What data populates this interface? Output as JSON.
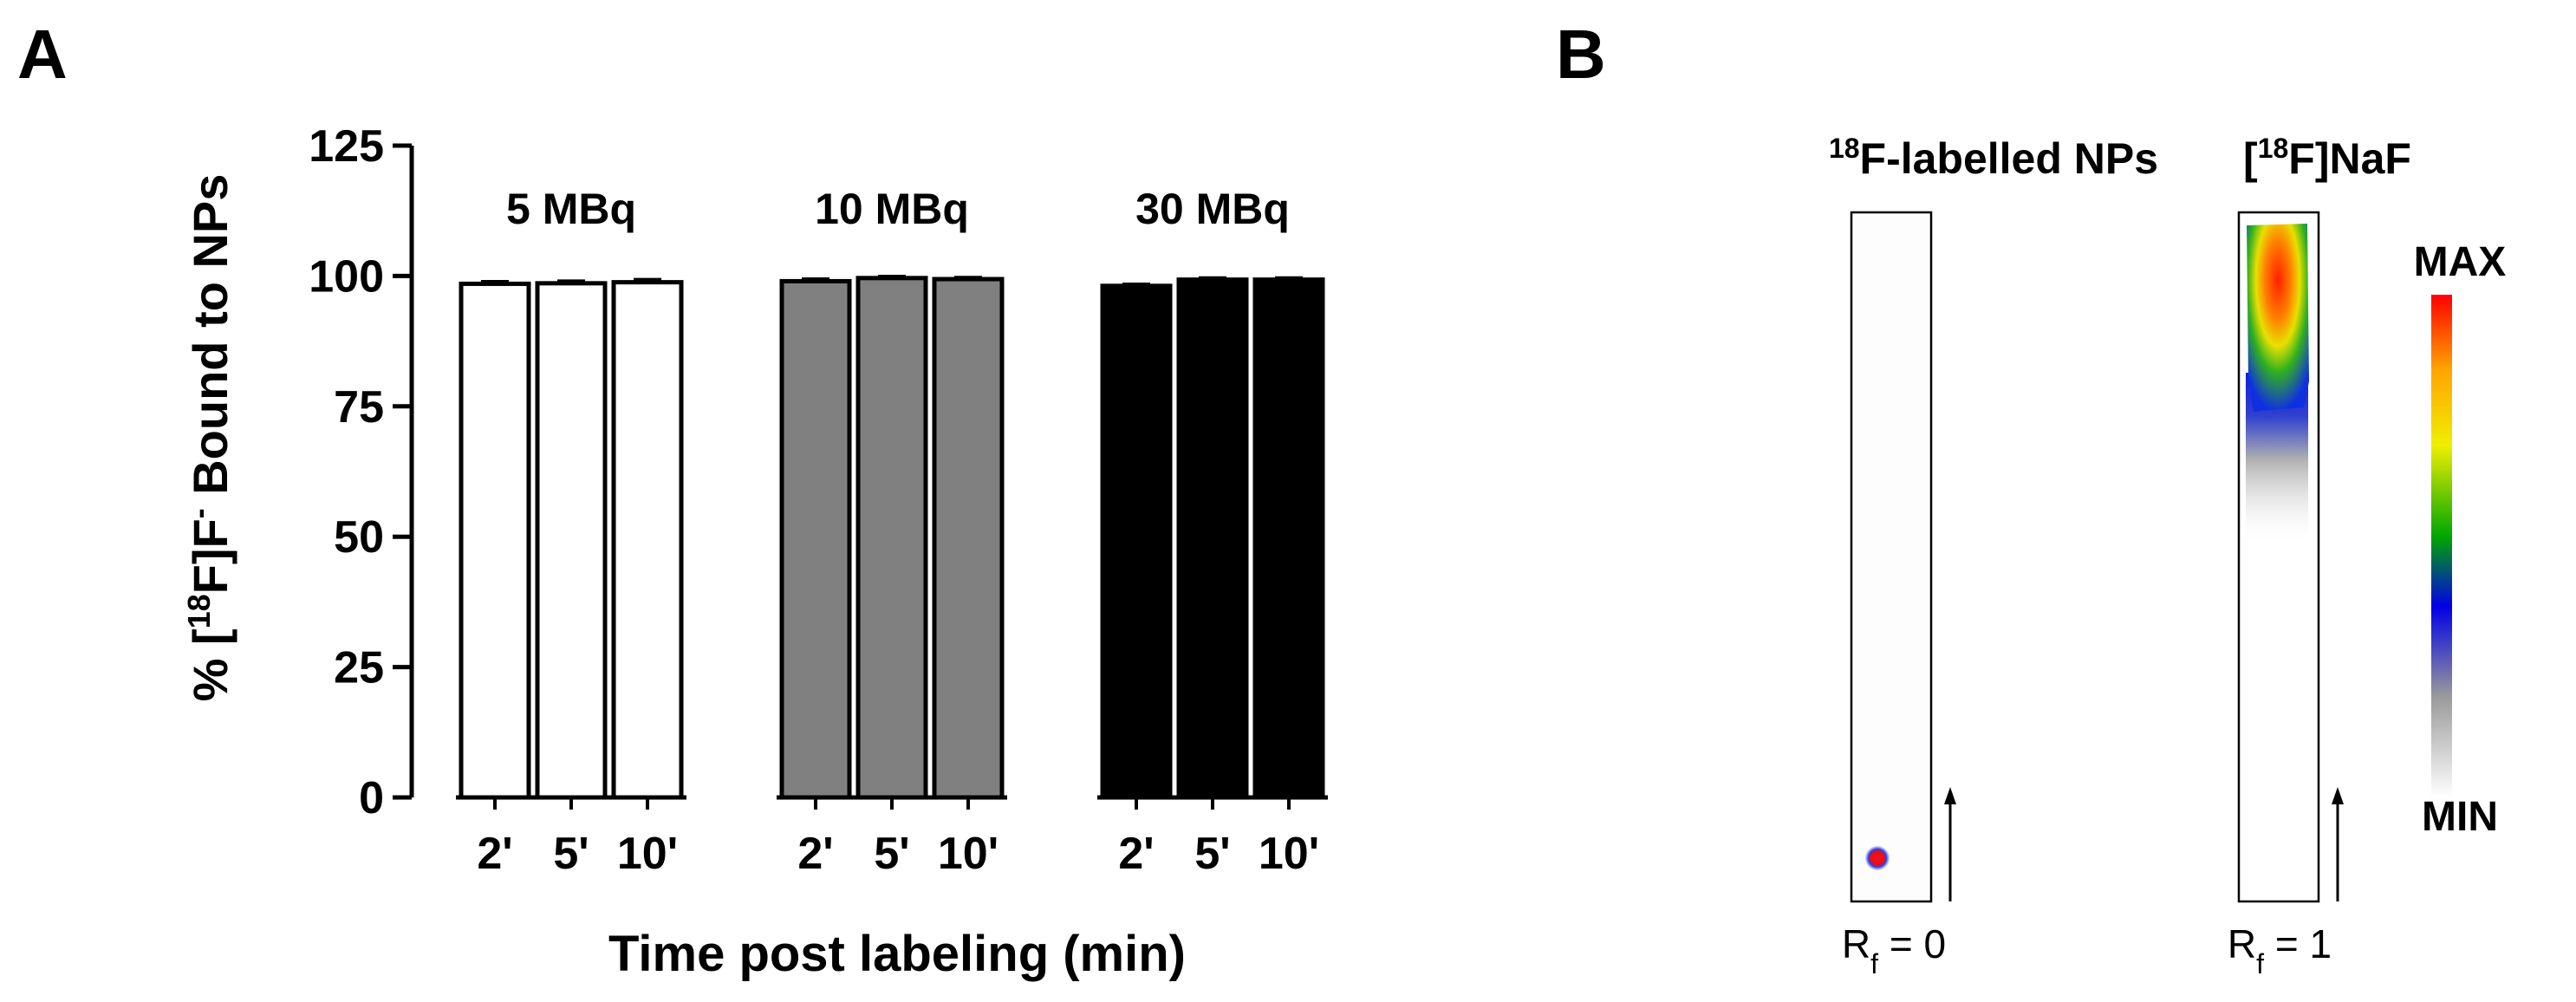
{
  "panel_a": {
    "label": "A",
    "chart_data": {
      "type": "bar",
      "xlabel": "Time post labeling (min)",
      "ylabel": {
        "pre": "% [",
        "sup1": "18",
        "mid": "F]F",
        "sup2": "-",
        "post": " Bound to NPs"
      },
      "ylim": [
        0,
        125
      ],
      "yticks": [
        "0",
        "25",
        "50",
        "75",
        "100",
        "125"
      ],
      "groups": [
        {
          "name": "5 MBq",
          "color": "#ffffff",
          "categories": [
            "2'",
            "5'",
            "10'"
          ],
          "values": [
            98.5,
            98.6,
            98.8
          ],
          "errors": [
            0.4,
            0.4,
            0.5
          ]
        },
        {
          "name": "10 MBq",
          "color": "#808080",
          "categories": [
            "2'",
            "5'",
            "10'"
          ],
          "values": [
            99.0,
            99.6,
            99.4
          ],
          "errors": [
            0.4,
            0.3,
            0.3
          ]
        },
        {
          "name": "30 MBq",
          "color": "#000000",
          "categories": [
            "2'",
            "5'",
            "10'"
          ],
          "values": [
            98.1,
            99.3,
            99.3
          ],
          "errors": [
            0.3,
            0.3,
            0.3
          ]
        }
      ]
    }
  },
  "panel_b": {
    "label": "B",
    "strip1": {
      "title_sup": "18",
      "title": "F-labelled NPs",
      "rf_main": "R",
      "rf_sub": "f",
      "rf_value": " = 0"
    },
    "strip2": {
      "title_pre": "[",
      "title_sup": "18",
      "title": "F]NaF",
      "rf_main": "R",
      "rf_sub": "f",
      "rf_value": " = 1"
    },
    "scale": {
      "max": "MAX",
      "min": "MIN",
      "colors": [
        "#ff0000",
        "#ffa500",
        "#f5f000",
        "#00b000",
        "#0000e0",
        "#909090",
        "#ffffff"
      ]
    }
  }
}
